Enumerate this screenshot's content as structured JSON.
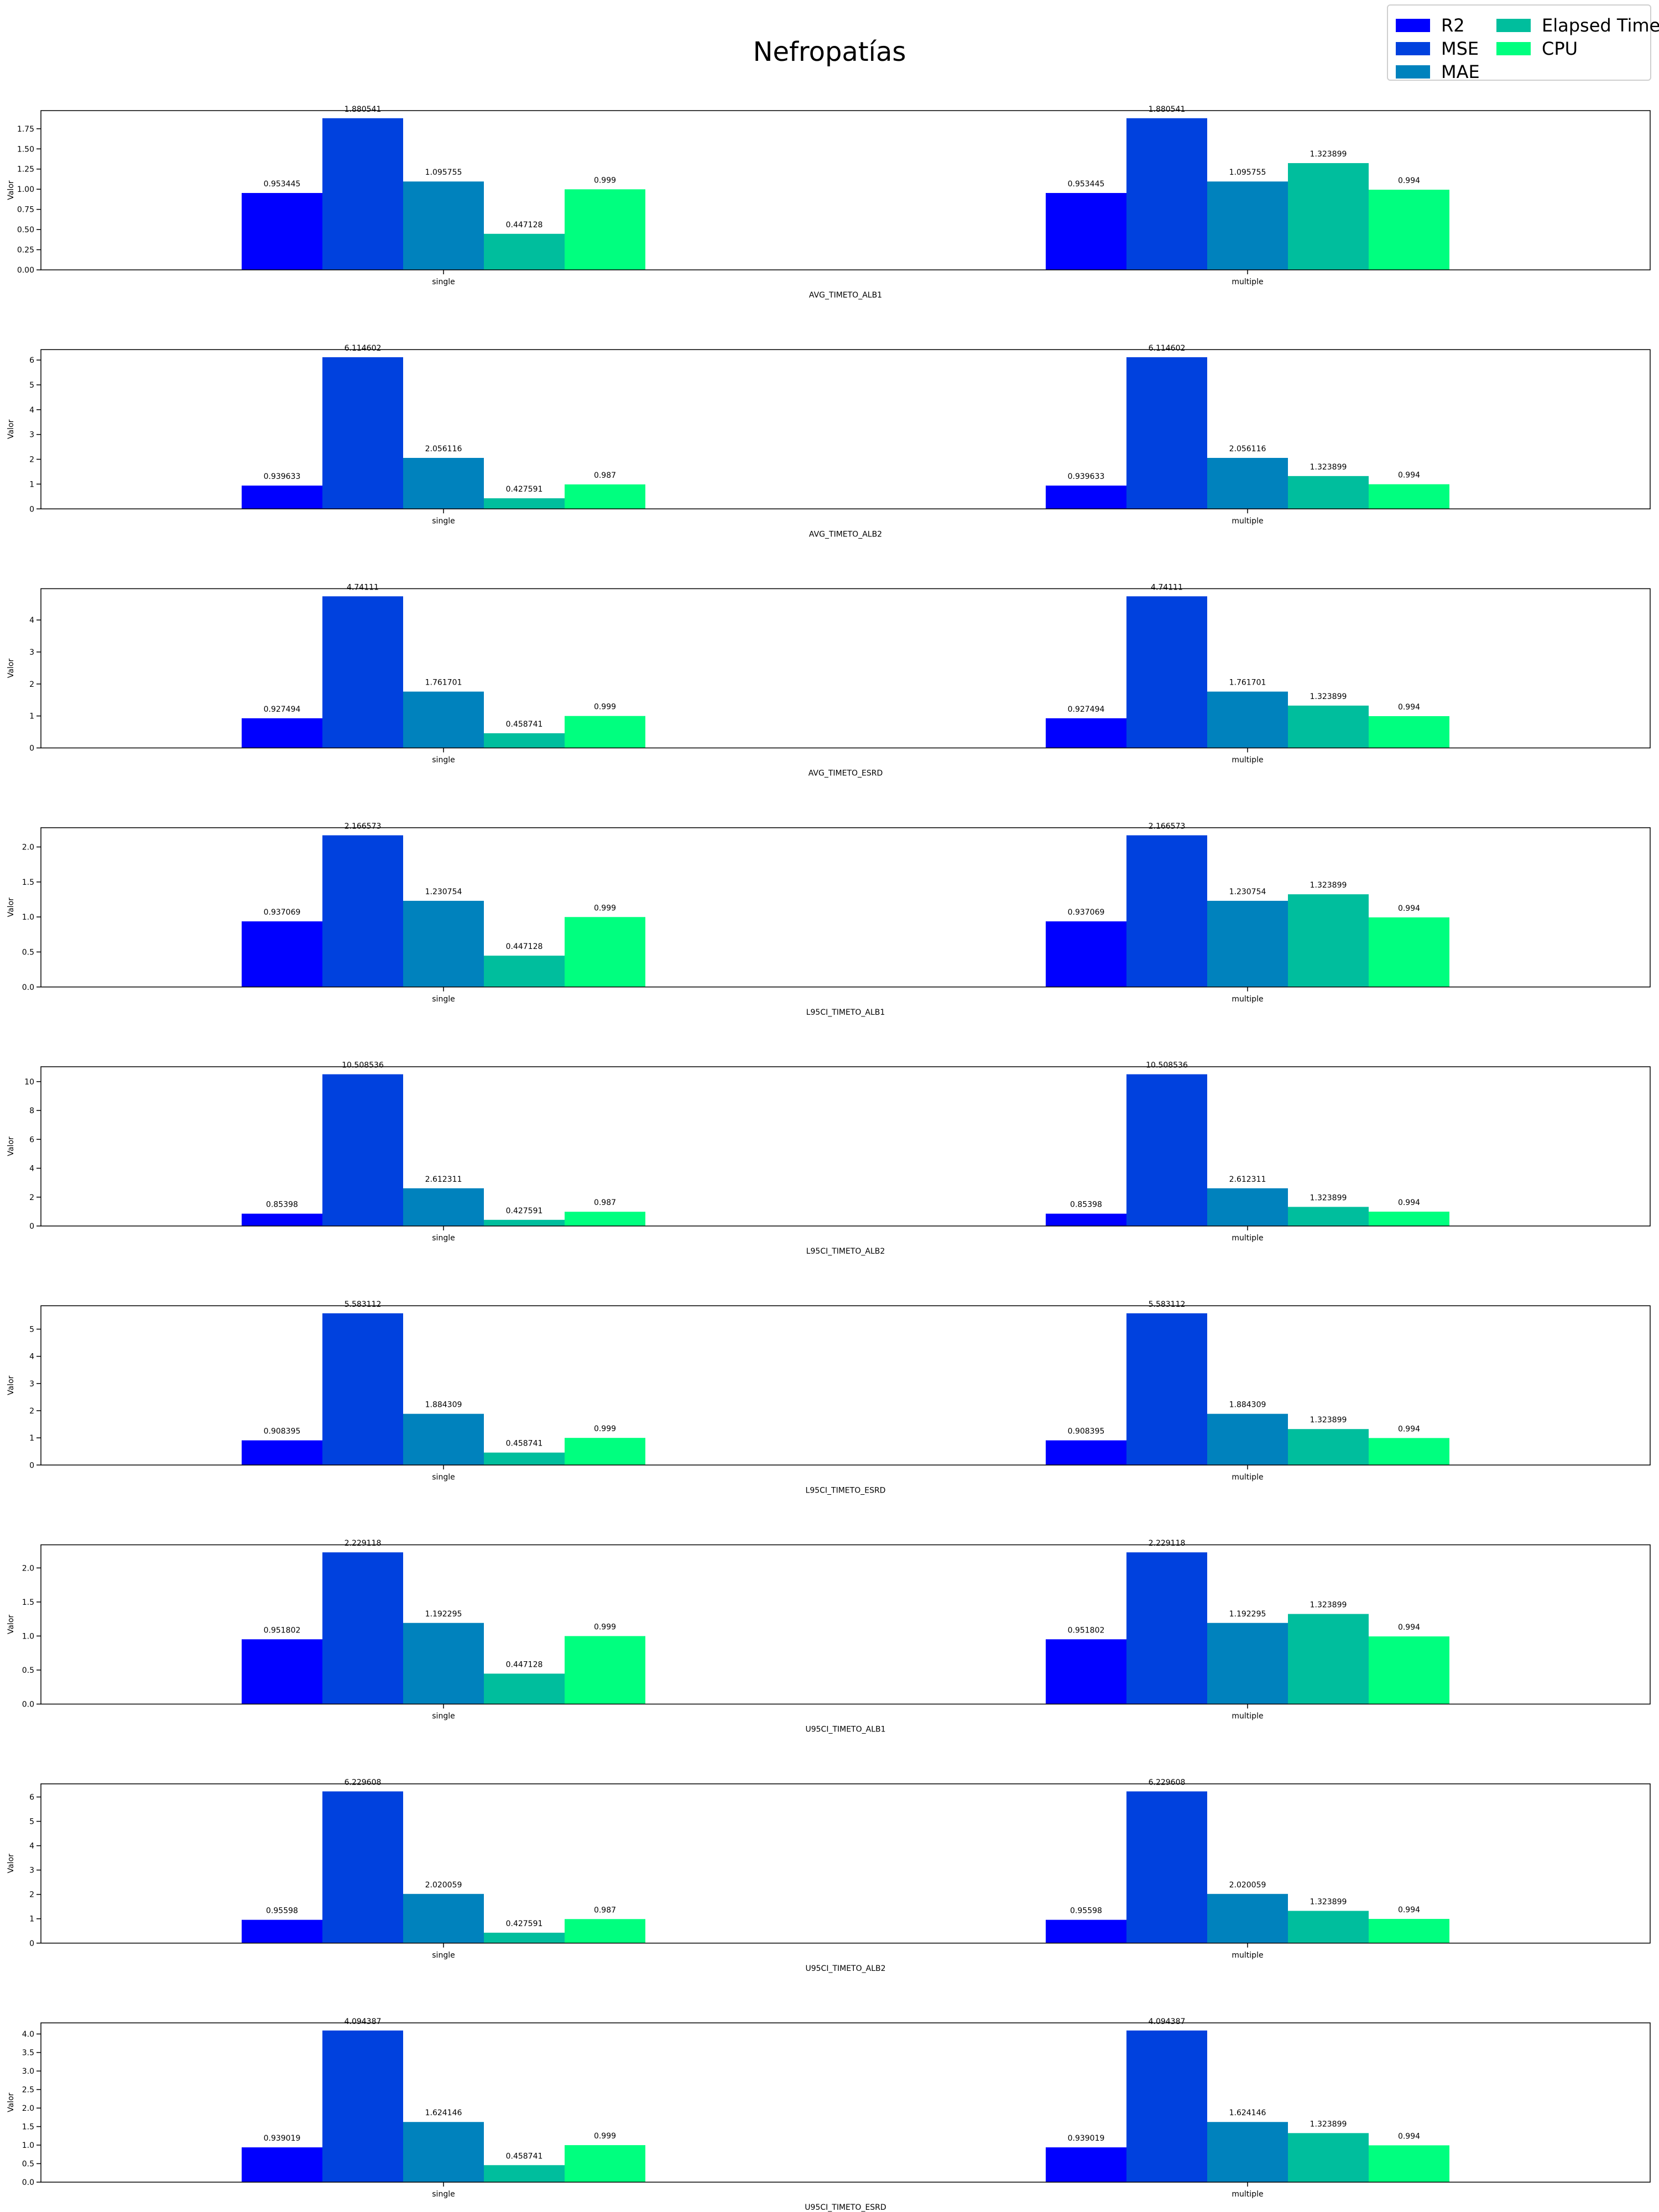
{
  "title": "Nefropatías",
  "legend": {
    "items": [
      {
        "label": "R2",
        "color": "#0000ff"
      },
      {
        "label": "MSE",
        "color": "#0041de"
      },
      {
        "label": "MAE",
        "color": "#0082bd"
      },
      {
        "label": "Elapsed Time",
        "color": "#00be9d"
      },
      {
        "label": "CPU",
        "color": "#00ff7f"
      }
    ]
  },
  "chart_data": [
    {
      "type": "bar",
      "xlabel": "AVG_TIMETO_ALB1",
      "ylabel": "Valor",
      "categories": [
        "single",
        "multiple"
      ],
      "ylim": [
        0,
        1.975
      ],
      "yticks": [
        0,
        0.25,
        0.5,
        0.75,
        1.0,
        1.25,
        1.5,
        1.75
      ],
      "ytick_labels": [
        "0.00",
        "0.25",
        "0.50",
        "0.75",
        "1.00",
        "1.25",
        "1.50",
        "1.75"
      ],
      "series": [
        {
          "name": "R2",
          "values": [
            0.953445,
            0.953445
          ],
          "labels": [
            "0.953445",
            "0.953445"
          ]
        },
        {
          "name": "MSE",
          "values": [
            1.880541,
            1.880541
          ],
          "labels": [
            "1.880541",
            "1.880541"
          ]
        },
        {
          "name": "MAE",
          "values": [
            1.095755,
            1.095755
          ],
          "labels": [
            "1.095755",
            "1.095755"
          ]
        },
        {
          "name": "Elapsed Time",
          "values": [
            0.447128,
            1.323899
          ],
          "labels": [
            "0.447128",
            "1.323899"
          ]
        },
        {
          "name": "CPU",
          "values": [
            0.999,
            0.994
          ],
          "labels": [
            "0.999",
            "0.994"
          ]
        }
      ]
    },
    {
      "type": "bar",
      "xlabel": "AVG_TIMETO_ALB2",
      "ylabel": "Valor",
      "categories": [
        "single",
        "multiple"
      ],
      "ylim": [
        0,
        6.42
      ],
      "yticks": [
        0,
        1,
        2,
        3,
        4,
        5,
        6
      ],
      "ytick_labels": [
        "0",
        "1",
        "2",
        "3",
        "4",
        "5",
        "6"
      ],
      "series": [
        {
          "name": "R2",
          "values": [
            0.939633,
            0.939633
          ],
          "labels": [
            "0.939633",
            "0.939633"
          ]
        },
        {
          "name": "MSE",
          "values": [
            6.114602,
            6.114602
          ],
          "labels": [
            "6.114602",
            "6.114602"
          ]
        },
        {
          "name": "MAE",
          "values": [
            2.056116,
            2.056116
          ],
          "labels": [
            "2.056116",
            "2.056116"
          ]
        },
        {
          "name": "Elapsed Time",
          "values": [
            0.427591,
            1.323899
          ],
          "labels": [
            "0.427591",
            "1.323899"
          ]
        },
        {
          "name": "CPU",
          "values": [
            0.987,
            0.994
          ],
          "labels": [
            "0.987",
            "0.994"
          ]
        }
      ]
    },
    {
      "type": "bar",
      "xlabel": "AVG_TIMETO_ESRD",
      "ylabel": "Valor",
      "categories": [
        "single",
        "multiple"
      ],
      "ylim": [
        0,
        4.98
      ],
      "yticks": [
        0,
        1,
        2,
        3,
        4
      ],
      "ytick_labels": [
        "0",
        "1",
        "2",
        "3",
        "4"
      ],
      "series": [
        {
          "name": "R2",
          "values": [
            0.927494,
            0.927494
          ],
          "labels": [
            "0.927494",
            "0.927494"
          ]
        },
        {
          "name": "MSE",
          "values": [
            4.74111,
            4.74111
          ],
          "labels": [
            "4.74111",
            "4.74111"
          ]
        },
        {
          "name": "MAE",
          "values": [
            1.761701,
            1.761701
          ],
          "labels": [
            "1.761701",
            "1.761701"
          ]
        },
        {
          "name": "Elapsed Time",
          "values": [
            0.458741,
            1.323899
          ],
          "labels": [
            "0.458741",
            "1.323899"
          ]
        },
        {
          "name": "CPU",
          "values": [
            0.999,
            0.994
          ],
          "labels": [
            "0.999",
            "0.994"
          ]
        }
      ]
    },
    {
      "type": "bar",
      "xlabel": "L95CI_TIMETO_ALB1",
      "ylabel": "Valor",
      "categories": [
        "single",
        "multiple"
      ],
      "ylim": [
        0,
        2.275
      ],
      "yticks": [
        0,
        0.5,
        1.0,
        1.5,
        2.0
      ],
      "ytick_labels": [
        "0.0",
        "0.5",
        "1.0",
        "1.5",
        "2.0"
      ],
      "series": [
        {
          "name": "R2",
          "values": [
            0.937069,
            0.937069
          ],
          "labels": [
            "0.937069",
            "0.937069"
          ]
        },
        {
          "name": "MSE",
          "values": [
            2.166573,
            2.166573
          ],
          "labels": [
            "2.166573",
            "2.166573"
          ]
        },
        {
          "name": "MAE",
          "values": [
            1.230754,
            1.230754
          ],
          "labels": [
            "1.230754",
            "1.230754"
          ]
        },
        {
          "name": "Elapsed Time",
          "values": [
            0.447128,
            1.323899
          ],
          "labels": [
            "0.447128",
            "1.323899"
          ]
        },
        {
          "name": "CPU",
          "values": [
            0.999,
            0.994
          ],
          "labels": [
            "0.999",
            "0.994"
          ]
        }
      ]
    },
    {
      "type": "bar",
      "xlabel": "L95CI_TIMETO_ALB2",
      "ylabel": "Valor",
      "categories": [
        "single",
        "multiple"
      ],
      "ylim": [
        0,
        11.03
      ],
      "yticks": [
        0,
        2,
        4,
        6,
        8,
        10
      ],
      "ytick_labels": [
        "0",
        "2",
        "4",
        "6",
        "8",
        "10"
      ],
      "series": [
        {
          "name": "R2",
          "values": [
            0.85398,
            0.85398
          ],
          "labels": [
            "0.85398",
            "0.85398"
          ]
        },
        {
          "name": "MSE",
          "values": [
            10.508536,
            10.508536
          ],
          "labels": [
            "10.508536",
            "10.508536"
          ]
        },
        {
          "name": "MAE",
          "values": [
            2.612311,
            2.612311
          ],
          "labels": [
            "2.612311",
            "2.612311"
          ]
        },
        {
          "name": "Elapsed Time",
          "values": [
            0.427591,
            1.323899
          ],
          "labels": [
            "0.427591",
            "1.323899"
          ]
        },
        {
          "name": "CPU",
          "values": [
            0.987,
            0.994
          ],
          "labels": [
            "0.987",
            "0.994"
          ]
        }
      ]
    },
    {
      "type": "bar",
      "xlabel": "L95CI_TIMETO_ESRD",
      "ylabel": "Valor",
      "categories": [
        "single",
        "multiple"
      ],
      "ylim": [
        0,
        5.86
      ],
      "yticks": [
        0,
        1,
        2,
        3,
        4,
        5
      ],
      "ytick_labels": [
        "0",
        "1",
        "2",
        "3",
        "4",
        "5"
      ],
      "series": [
        {
          "name": "R2",
          "values": [
            0.908395,
            0.908395
          ],
          "labels": [
            "0.908395",
            "0.908395"
          ]
        },
        {
          "name": "MSE",
          "values": [
            5.583112,
            5.583112
          ],
          "labels": [
            "5.583112",
            "5.583112"
          ]
        },
        {
          "name": "MAE",
          "values": [
            1.884309,
            1.884309
          ],
          "labels": [
            "1.884309",
            "1.884309"
          ]
        },
        {
          "name": "Elapsed Time",
          "values": [
            0.458741,
            1.323899
          ],
          "labels": [
            "0.458741",
            "1.323899"
          ]
        },
        {
          "name": "CPU",
          "values": [
            0.999,
            0.994
          ],
          "labels": [
            "0.999",
            "0.994"
          ]
        }
      ]
    },
    {
      "type": "bar",
      "xlabel": "U95CI_TIMETO_ALB1",
      "ylabel": "Valor",
      "categories": [
        "single",
        "multiple"
      ],
      "ylim": [
        0,
        2.34
      ],
      "yticks": [
        0,
        0.5,
        1.0,
        1.5,
        2.0
      ],
      "ytick_labels": [
        "0.0",
        "0.5",
        "1.0",
        "1.5",
        "2.0"
      ],
      "series": [
        {
          "name": "R2",
          "values": [
            0.951802,
            0.951802
          ],
          "labels": [
            "0.951802",
            "0.951802"
          ]
        },
        {
          "name": "MSE",
          "values": [
            2.229118,
            2.229118
          ],
          "labels": [
            "2.229118",
            "2.229118"
          ]
        },
        {
          "name": "MAE",
          "values": [
            1.192295,
            1.192295
          ],
          "labels": [
            "1.192295",
            "1.192295"
          ]
        },
        {
          "name": "Elapsed Time",
          "values": [
            0.447128,
            1.323899
          ],
          "labels": [
            "0.447128",
            "1.323899"
          ]
        },
        {
          "name": "CPU",
          "values": [
            0.999,
            0.994
          ],
          "labels": [
            "0.999",
            "0.994"
          ]
        }
      ]
    },
    {
      "type": "bar",
      "xlabel": "U95CI_TIMETO_ALB2",
      "ylabel": "Valor",
      "categories": [
        "single",
        "multiple"
      ],
      "ylim": [
        0,
        6.54
      ],
      "yticks": [
        0,
        1,
        2,
        3,
        4,
        5,
        6
      ],
      "ytick_labels": [
        "0",
        "1",
        "2",
        "3",
        "4",
        "5",
        "6"
      ],
      "series": [
        {
          "name": "R2",
          "values": [
            0.95598,
            0.95598
          ],
          "labels": [
            "0.95598",
            "0.95598"
          ]
        },
        {
          "name": "MSE",
          "values": [
            6.229608,
            6.229608
          ],
          "labels": [
            "6.229608",
            "6.229608"
          ]
        },
        {
          "name": "MAE",
          "values": [
            2.020059,
            2.020059
          ],
          "labels": [
            "2.020059",
            "2.020059"
          ]
        },
        {
          "name": "Elapsed Time",
          "values": [
            0.427591,
            1.323899
          ],
          "labels": [
            "0.427591",
            "1.323899"
          ]
        },
        {
          "name": "CPU",
          "values": [
            0.987,
            0.994
          ],
          "labels": [
            "0.987",
            "0.994"
          ]
        }
      ]
    },
    {
      "type": "bar",
      "xlabel": "U95CI_TIMETO_ESRD",
      "ylabel": "Valor",
      "categories": [
        "single",
        "multiple"
      ],
      "ylim": [
        0,
        4.3
      ],
      "yticks": [
        0,
        0.5,
        1.0,
        1.5,
        2.0,
        2.5,
        3.0,
        3.5,
        4.0
      ],
      "ytick_labels": [
        "0.0",
        "0.5",
        "1.0",
        "1.5",
        "2.0",
        "2.5",
        "3.0",
        "3.5",
        "4.0"
      ],
      "series": [
        {
          "name": "R2",
          "values": [
            0.939019,
            0.939019
          ],
          "labels": [
            "0.939019",
            "0.939019"
          ]
        },
        {
          "name": "MSE",
          "values": [
            4.094387,
            4.094387
          ],
          "labels": [
            "4.094387",
            "4.094387"
          ]
        },
        {
          "name": "MAE",
          "values": [
            1.624146,
            1.624146
          ],
          "labels": [
            "1.624146",
            "1.624146"
          ]
        },
        {
          "name": "Elapsed Time",
          "values": [
            0.458741,
            1.323899
          ],
          "labels": [
            "0.458741",
            "1.323899"
          ]
        },
        {
          "name": "CPU",
          "values": [
            0.999,
            0.994
          ],
          "labels": [
            "0.999",
            "0.994"
          ]
        }
      ]
    }
  ]
}
